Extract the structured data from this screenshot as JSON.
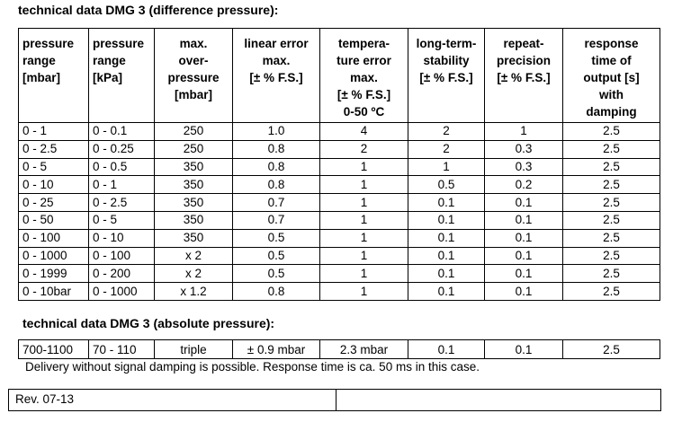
{
  "title_diff": "technical data DMG 3 (difference pressure):",
  "diff_headers": [
    [
      "pressure",
      "range",
      "[mbar]"
    ],
    [
      "pressure",
      "range",
      "[kPa]"
    ],
    [
      "max.",
      "over-",
      "pressure",
      "[mbar]"
    ],
    [
      "linear error",
      "max.",
      "[± % F.S.]"
    ],
    [
      "tempera-",
      "ture error",
      "max.",
      "[± % F.S.]",
      "0-50 ºC"
    ],
    [
      "long-term-",
      "stability",
      "[± % F.S.]"
    ],
    [
      "repeat-",
      "precision",
      "[± % F.S.]"
    ],
    [
      "response",
      "time of",
      "output [s]",
      "with",
      "damping"
    ]
  ],
  "diff_rows": [
    [
      "0 - 1",
      "0 - 0.1",
      "250",
      "1.0",
      "4",
      "2",
      "1",
      "2.5"
    ],
    [
      "0 - 2.5",
      "0 - 0.25",
      "250",
      "0.8",
      "2",
      "2",
      "0.3",
      "2.5"
    ],
    [
      "0 - 5",
      "0 - 0.5",
      "350",
      "0.8",
      "1",
      "1",
      "0.3",
      "2.5"
    ],
    [
      "0 - 10",
      "0 - 1",
      "350",
      "0.8",
      "1",
      "0.5",
      "0.2",
      "2.5"
    ],
    [
      "0 - 25",
      "0 - 2.5",
      "350",
      "0.7",
      "1",
      "0.1",
      "0.1",
      "2.5"
    ],
    [
      "0 - 50",
      "0 - 5",
      "350",
      "0.7",
      "1",
      "0.1",
      "0.1",
      "2.5"
    ],
    [
      "0 - 100",
      "0 - 10",
      "350",
      "0.5",
      "1",
      "0.1",
      "0.1",
      "2.5"
    ],
    [
      "0 - 1000",
      "0 - 100",
      "x 2",
      "0.5",
      "1",
      "0.1",
      "0.1",
      "2.5"
    ],
    [
      "0 - 1999",
      "0 - 200",
      "x 2",
      "0.5",
      "1",
      "0.1",
      "0.1",
      "2.5"
    ],
    [
      "0 - 10bar",
      "0 - 1000",
      "x 1.2",
      "0.8",
      "1",
      "0.1",
      "0.1",
      "2.5"
    ]
  ],
  "title_abs": "technical data DMG 3 (absolute pressure):",
  "abs_row": [
    "700-1100",
    "70 - 110",
    "triple",
    "± 0.9 mbar",
    "2.3 mbar",
    "0.1",
    "0.1",
    "2.5"
  ],
  "note": "Delivery without signal damping is possible. Response time is ca. 50 ms in this case.",
  "revision": "Rev. 07-13"
}
